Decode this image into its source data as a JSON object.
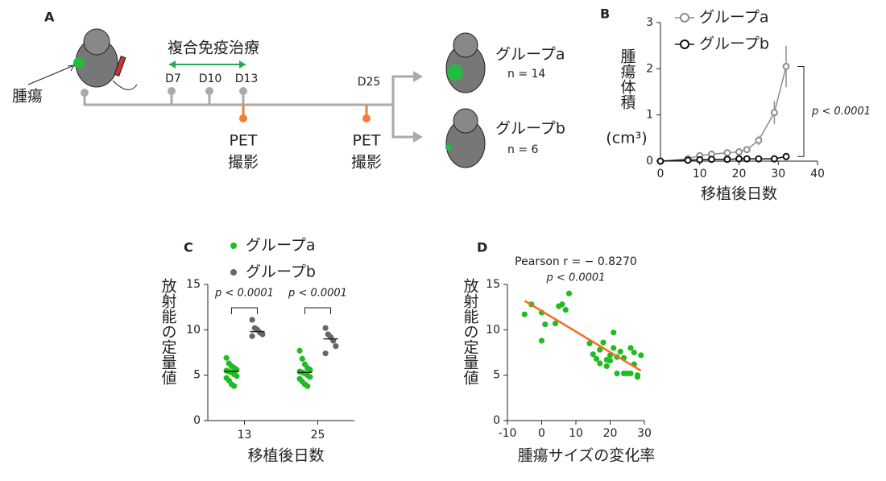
{
  "diagram": {
    "label": "A",
    "treatment": "複合免疫治療",
    "days": [
      "D7",
      "D10",
      "D13",
      "D25"
    ],
    "tumor": "腫瘍",
    "pet": [
      "PET",
      "PET"
    ],
    "imaging": [
      "撮影",
      "撮影"
    ],
    "groups": [
      {
        "name": "グループa",
        "n": "n = 14"
      },
      {
        "name": "グループb",
        "n": "n = 6"
      }
    ]
  },
  "chart_data": [
    {
      "type": "line",
      "label": "B",
      "xlabel": "移植後日数",
      "ylabel": "腫瘍体積",
      "yunit": "(cm³)",
      "annotation": "p < 0.0001",
      "x": [
        0,
        7,
        10,
        13,
        17,
        20,
        22,
        25,
        29,
        32
      ],
      "series": [
        {
          "name": "グループa",
          "color": "#8c8c8c",
          "values": [
            0,
            0.05,
            0.12,
            0.15,
            0.18,
            0.2,
            0.25,
            0.45,
            1.05,
            2.05
          ],
          "errors": [
            null,
            null,
            null,
            null,
            null,
            null,
            null,
            0.1,
            0.25,
            0.45
          ]
        },
        {
          "name": "グループb",
          "color": "#111111",
          "values": [
            0,
            0.02,
            0.03,
            0.04,
            0.04,
            0.05,
            0.05,
            0.05,
            0.05,
            0.1
          ]
        }
      ],
      "xlim": [
        0,
        40
      ],
      "xticks": [
        0,
        10,
        20,
        30,
        40
      ],
      "ylim": [
        0,
        3
      ],
      "yticks": [
        0,
        1,
        2,
        3
      ]
    },
    {
      "type": "strip",
      "label": "C",
      "xlabel": "移植後日数",
      "ylabel": "放射能の定量値",
      "categories": [
        "13",
        "25"
      ],
      "annotations": [
        "p < 0.0001",
        "p < 0.0001"
      ],
      "series": [
        {
          "name": "グループa",
          "color": "#22bb22",
          "values": [
            [
              6.9,
              6.3,
              6.0,
              5.8,
              5.6,
              5.5,
              5.4,
              5.3,
              5.1,
              4.9,
              4.7,
              4.4,
              4.0,
              3.8
            ],
            [
              7.7,
              6.8,
              6.2,
              5.8,
              5.6,
              5.4,
              5.3,
              5.2,
              5.0,
              4.8,
              4.6,
              4.3,
              4.0,
              3.8
            ]
          ],
          "medians": [
            5.4,
            5.3
          ]
        },
        {
          "name": "グループb",
          "color": "#666666",
          "values": [
            [
              11.1,
              10.2,
              10.0,
              9.7,
              9.5,
              9.3
            ],
            [
              10.2,
              9.5,
              9.2,
              8.8,
              8.2,
              7.4
            ]
          ],
          "medians": [
            9.8,
            9.0
          ]
        }
      ],
      "ylim": [
        0,
        15
      ],
      "yticks": [
        0,
        5,
        10,
        15
      ]
    },
    {
      "type": "scatter",
      "label": "D",
      "title": "Pearson r = − 0.8270",
      "subtitle": "p < 0.0001",
      "xlabel": "腫瘍サイズの変化率",
      "ylabel": "放射能の定量値",
      "color": "#22bb22",
      "x": [
        -5,
        -3,
        0,
        0,
        1,
        4,
        5,
        6,
        7,
        8,
        14,
        15,
        16,
        17,
        17,
        18,
        19,
        19,
        20,
        20,
        21,
        21,
        22,
        22,
        23,
        24,
        24,
        25,
        26,
        26,
        27,
        27,
        28,
        28,
        29
      ],
      "y": [
        11.7,
        12.8,
        11.9,
        8.8,
        10.6,
        10.7,
        12.6,
        12.8,
        12.2,
        14.0,
        8.5,
        7.3,
        6.8,
        7.8,
        6.3,
        8.6,
        6.7,
        6.0,
        7.2,
        6.6,
        9.7,
        8.0,
        7.0,
        5.2,
        7.6,
        6.9,
        5.2,
        5.2,
        8.0,
        5.2,
        7.5,
        6.2,
        5.0,
        4.8,
        7.2
      ],
      "fit": {
        "x": [
          -5,
          29
        ],
        "y": [
          13.2,
          5.5
        ],
        "color": "#f07020"
      },
      "xlim": [
        -10,
        30
      ],
      "xticks": [
        -10,
        0,
        10,
        20,
        30
      ],
      "ylim": [
        0,
        15
      ],
      "yticks": [
        0,
        5,
        10,
        15
      ]
    }
  ]
}
